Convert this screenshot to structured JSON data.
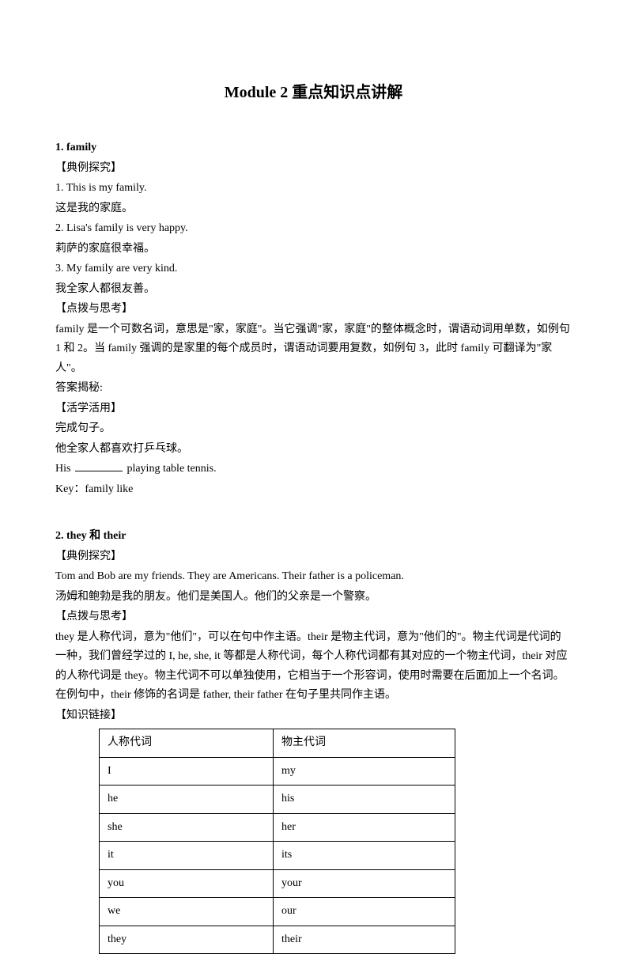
{
  "title": "Module 2 重点知识点讲解",
  "s1": {
    "heading": "1. family",
    "label_example": "【典例探究】",
    "ex1_en": "1. This is my family.",
    "ex1_zh": "这是我的家庭。",
    "ex2_en": "2. Lisa's family is very happy.",
    "ex2_zh": "莉萨的家庭很幸福。",
    "ex3_en": "3. My family are very kind.",
    "ex3_zh": "我全家人都很友善。",
    "label_hint": "【点拨与思考】",
    "hint_p1": "family 是一个可数名词，意思是\"家，家庭\"。当它强调\"家，家庭\"的整体概念时，谓语动词用单数，如例句 1 和 2。当 family 强调的是家里的每个成员时，谓语动词要用复数，如例句 3，此时 family 可翻译为\"家人\"。",
    "answer_label": "答案揭秘:",
    "label_practice": "【活学活用】",
    "practice_intro": "完成句子。",
    "practice_zh": "他全家人都喜欢打乒乓球。",
    "practice_en_before": "His ",
    "practice_en_after": " playing table tennis.",
    "key": "Key：family like"
  },
  "s2": {
    "heading": "2. they 和 their",
    "label_example": "【典例探究】",
    "ex1_en": "Tom and Bob are my friends. They are Americans. Their father is a policeman.",
    "ex1_zh": "汤姆和鲍勃是我的朋友。他们是美国人。他们的父亲是一个警察。",
    "label_hint": "【点拨与思考】",
    "hint_p1": "they 是人称代词，意为\"他们\"，可以在句中作主语。their 是物主代词，意为\"他们的\"。物主代词是代词的一种，我们曾经学过的 I, he, she, it 等都是人称代词，每个人称代词都有其对应的一个物主代词，their 对应的人称代词是 they。物主代词不可以单独使用，它相当于一个形容词，使用时需要在后面加上一个名词。在例句中，their 修饰的名词是 father, their father 在句子里共同作主语。",
    "label_link": "【知识链接】",
    "table": {
      "header": [
        "人称代词",
        "物主代词"
      ],
      "rows": [
        [
          "I",
          "my"
        ],
        [
          "he",
          "his"
        ],
        [
          "she",
          "her"
        ],
        [
          "it",
          "its"
        ],
        [
          "you",
          "your"
        ],
        [
          "we",
          "our"
        ],
        [
          "they",
          "their"
        ]
      ]
    }
  }
}
